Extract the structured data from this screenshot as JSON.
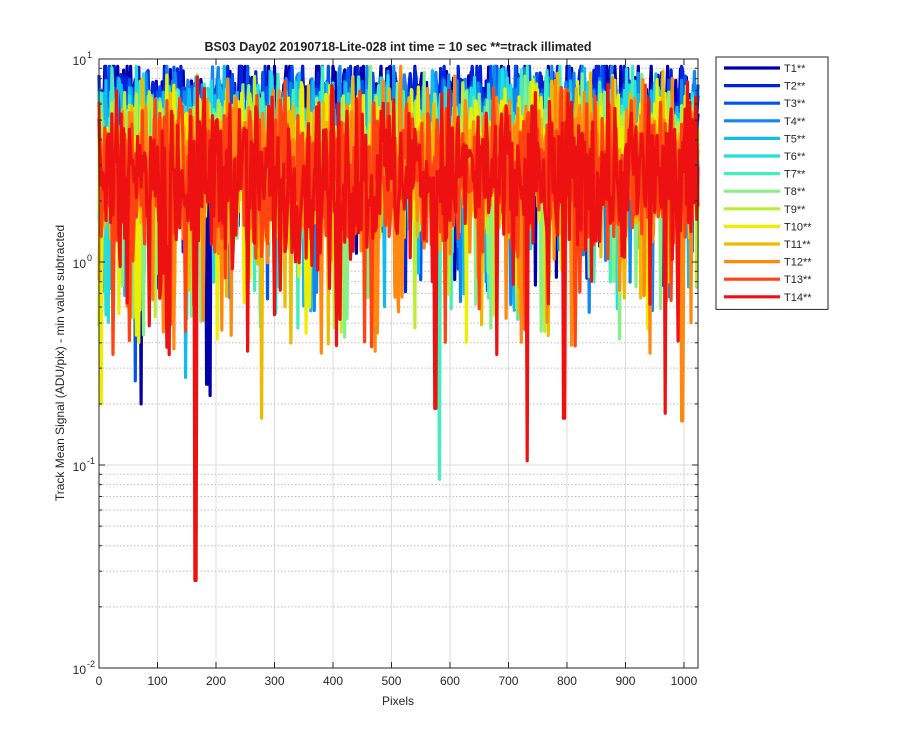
{
  "chart_data": {
    "type": "line",
    "title": "BS03 Day02 20190718-Lite-028 int time = 10 sec    **=track illimated",
    "xlabel": "Pixels",
    "ylabel": "Track Mean Signal (ADU/pix) - min value subtracted",
    "xlim": [
      0,
      1024
    ],
    "ylim": [
      0.01,
      10
    ],
    "yscale": "log",
    "grid": true,
    "minor_grid": true,
    "legend_position": "outside-top-right",
    "x_ticks": [
      "0",
      "100",
      "200",
      "300",
      "400",
      "500",
      "600",
      "700",
      "800",
      "900",
      "1000"
    ],
    "y_tick_labels": [
      {
        "base": "10",
        "exp": "-2"
      },
      {
        "base": "10",
        "exp": "-1"
      },
      {
        "base": "10",
        "exp": "0"
      },
      {
        "base": "10",
        "exp": "1"
      }
    ],
    "series": [
      {
        "name": "T1**",
        "color": "#0000AA",
        "level": 5.9,
        "spread": 0.55
      },
      {
        "name": "T2**",
        "color": "#0022DD",
        "level": 5.5,
        "spread": 0.6
      },
      {
        "name": "T3**",
        "color": "#0055EE",
        "level": 5.0,
        "spread": 0.65
      },
      {
        "name": "T4**",
        "color": "#1188EE",
        "level": 4.6,
        "spread": 0.7
      },
      {
        "name": "T5**",
        "color": "#11BBEE",
        "level": 4.2,
        "spread": 0.7
      },
      {
        "name": "T6**",
        "color": "#22DDDD",
        "level": 3.9,
        "spread": 0.75
      },
      {
        "name": "T7**",
        "color": "#44EEBB",
        "level": 3.6,
        "spread": 0.8
      },
      {
        "name": "T8**",
        "color": "#88EE88",
        "level": 3.4,
        "spread": 0.8
      },
      {
        "name": "T9**",
        "color": "#BBEE33",
        "level": 3.3,
        "spread": 0.8
      },
      {
        "name": "T10**",
        "color": "#EEEE00",
        "level": 3.1,
        "spread": 0.85
      },
      {
        "name": "T11**",
        "color": "#EEBB00",
        "level": 3.0,
        "spread": 0.85
      },
      {
        "name": "T12**",
        "color": "#FF8811",
        "level": 2.9,
        "spread": 0.9
      },
      {
        "name": "T13**",
        "color": "#FF4411",
        "level": 2.8,
        "spread": 0.9
      },
      {
        "name": "T14**",
        "color": "#EE1111",
        "level": 2.7,
        "spread": 0.95
      }
    ],
    "dips": [
      {
        "series": "T1**",
        "x": 72,
        "y": 0.2
      },
      {
        "series": "T1**",
        "x": 190,
        "y": 0.22
      },
      {
        "series": "T3**",
        "x": 62,
        "y": 0.26
      },
      {
        "series": "T5**",
        "x": 148,
        "y": 0.27
      },
      {
        "series": "T1**",
        "x": 185,
        "y": 0.25
      },
      {
        "series": "T11**",
        "x": 278,
        "y": 0.17
      },
      {
        "series": "T7**",
        "x": 582,
        "y": 0.085
      },
      {
        "series": "T14**",
        "x": 575,
        "y": 0.19
      },
      {
        "series": "T14**",
        "x": 165,
        "y": 0.027
      },
      {
        "series": "T14**",
        "x": 732,
        "y": 0.105
      },
      {
        "series": "T14**",
        "x": 795,
        "y": 0.17
      },
      {
        "series": "T14**",
        "x": 968,
        "y": 0.18
      },
      {
        "series": "T12**",
        "x": 997,
        "y": 0.165
      },
      {
        "series": "T10**",
        "x": 3,
        "y": 0.2
      }
    ]
  }
}
